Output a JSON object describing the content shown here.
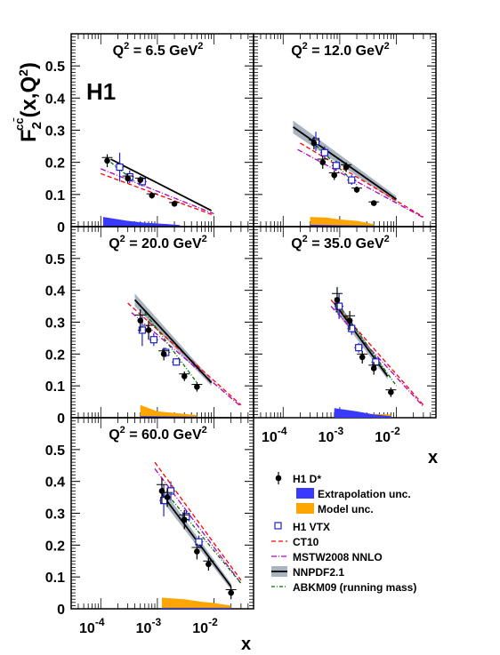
{
  "figure": {
    "ylabel": "F₂^{cc̄}(x,Q²)",
    "ylabel_main": "F",
    "ylabel_sup": "cc̄",
    "ylabel_sub": "2",
    "ylabel_args": "(x,Q",
    "ylabel_args_sup": "2",
    "ylabel_close": ")",
    "experiment": "H1",
    "xlabel": "x",
    "y_ticks": [
      "0.1",
      "0.2",
      "0.3",
      "0.4",
      "0.5"
    ],
    "y_zero": "0",
    "x_ticks": [
      {
        "base": "10",
        "exp": "-4"
      },
      {
        "base": "10",
        "exp": "-3"
      },
      {
        "base": "10",
        "exp": "-2"
      }
    ]
  },
  "legend": {
    "items": [
      {
        "key": "h1dstar",
        "label": "H1 D*"
      },
      {
        "key": "extrap",
        "label": "Extrapolation unc."
      },
      {
        "key": "model",
        "label": "Model unc."
      },
      {
        "key": "h1vtx",
        "label": "H1 VTX"
      },
      {
        "key": "ct10",
        "label": "CT10"
      },
      {
        "key": "mstw",
        "label": "MSTW2008 NNLO"
      },
      {
        "key": "nnpdf",
        "label": "NNPDF2.1"
      },
      {
        "key": "abkm",
        "label": "ABKM09 (running mass)"
      }
    ]
  },
  "colors": {
    "h1dstar": "#000000",
    "h1vtx": "#2020c8",
    "extrap": "#3a3aff",
    "model": "#ffa500",
    "ct10": "#ff0000",
    "mstw": "#b000c8",
    "nnpdf": "#000000",
    "nnpdf_band": "#aab4c0",
    "abkm": "#007000"
  },
  "chart_data": {
    "type": "scatter",
    "xscale": "log",
    "xlim": [
      3e-05,
      0.05
    ],
    "ylim": [
      0,
      0.6
    ],
    "grid": false,
    "legend_placement": "bottom-right",
    "panels": [
      {
        "label": "Q² = 6.5 GeV²",
        "title_main": "Q",
        "title_sup": "2",
        "title_rest": " = 6.5 GeV",
        "title_sup2": "2",
        "h1_dstar": [
          {
            "x": 0.00013,
            "y": 0.205,
            "err": 0.02
          },
          {
            "x": 0.0003,
            "y": 0.15,
            "err": 0.015
          },
          {
            "x": 0.0005,
            "y": 0.145,
            "err": 0.012
          },
          {
            "x": 0.0008,
            "y": 0.097,
            "err": 0.01
          },
          {
            "x": 0.002,
            "y": 0.071,
            "err": 0.008
          }
        ],
        "h1_vtx": [
          {
            "x": 0.0002,
            "y": 0.185,
            "err": 0.045
          },
          {
            "x": 0.0003,
            "y": 0.155,
            "err": 0.02
          },
          {
            "x": 0.0005,
            "y": 0.14,
            "err": 0.015
          }
        ],
        "ct10": [
          [
            0.0001,
            0.165
          ],
          [
            0.01,
            0.035
          ]
        ],
        "mstw": [
          [
            0.0001,
            0.18
          ],
          [
            0.01,
            0.04
          ]
        ],
        "nnpdf": [
          [
            0.00015,
            0.21
          ],
          [
            0.009,
            0.05
          ]
        ],
        "abkm": [
          [
            0.00015,
            0.2
          ],
          [
            0.0004,
            0.14
          ]
        ],
        "extrap_band": [
          [
            0.00011,
            0.03
          ],
          [
            0.0003,
            0.018
          ],
          [
            0.0006,
            0.012
          ],
          [
            0.0015,
            0.008
          ],
          [
            0.0025,
            0.005
          ]
        ],
        "model_band": [
          [
            0.00011,
            0.02
          ],
          [
            0.0003,
            0.015
          ],
          [
            0.0006,
            0.01
          ],
          [
            0.0015,
            0.007
          ],
          [
            0.0025,
            0.004
          ]
        ]
      },
      {
        "label": "Q² = 12.0 GeV²",
        "title_main": "Q",
        "title_sup": "2",
        "title_rest": " = 12.0 GeV",
        "title_sup2": "2",
        "h1_dstar": [
          {
            "x": 0.00035,
            "y": 0.26,
            "err": 0.02
          },
          {
            "x": 0.0005,
            "y": 0.2,
            "err": 0.02
          },
          {
            "x": 0.0008,
            "y": 0.16,
            "err": 0.015
          },
          {
            "x": 0.0013,
            "y": 0.185,
            "err": 0.015
          },
          {
            "x": 0.002,
            "y": 0.115,
            "err": 0.01
          },
          {
            "x": 0.004,
            "y": 0.073,
            "err": 0.008
          }
        ],
        "h1_vtx": [
          {
            "x": 0.00035,
            "y": 0.265,
            "err": 0.03
          },
          {
            "x": 0.0005,
            "y": 0.23,
            "err": 0.02
          },
          {
            "x": 0.0008,
            "y": 0.19,
            "err": 0.015
          },
          {
            "x": 0.0015,
            "y": 0.145,
            "err": 0.015
          }
        ],
        "ct10": [
          [
            0.0002,
            0.26
          ],
          [
            0.03,
            0.03
          ]
        ],
        "mstw": [
          [
            0.00018,
            0.24
          ],
          [
            0.03,
            0.028
          ]
        ],
        "nnpdf": [
          [
            0.00015,
            0.31
          ],
          [
            0.01,
            0.085
          ]
        ],
        "abkm": [
          [
            0.0003,
            0.27
          ],
          [
            0.002,
            0.13
          ]
        ],
        "nnpdf_band": 0.02,
        "extrap_band": [
          [
            0.0003,
            0.006
          ],
          [
            0.001,
            0.004
          ],
          [
            0.004,
            0.003
          ]
        ],
        "model_band": [
          [
            0.0003,
            0.03
          ],
          [
            0.0006,
            0.028
          ],
          [
            0.001,
            0.022
          ],
          [
            0.002,
            0.018
          ],
          [
            0.004,
            0.008
          ]
        ]
      },
      {
        "label": "Q² = 20.0 GeV²",
        "title_main": "Q",
        "title_sup": "2",
        "title_rest": " = 20.0 GeV",
        "title_sup2": "2",
        "h1_dstar": [
          {
            "x": 0.0005,
            "y": 0.305,
            "err": 0.035
          },
          {
            "x": 0.0007,
            "y": 0.275,
            "err": 0.03
          },
          {
            "x": 0.0013,
            "y": 0.2,
            "err": 0.02
          },
          {
            "x": 0.003,
            "y": 0.13,
            "err": 0.015
          },
          {
            "x": 0.005,
            "y": 0.097,
            "err": 0.015
          }
        ],
        "h1_vtx": [
          {
            "x": 0.0005,
            "y": 0.275,
            "err": 0.05
          },
          {
            "x": 0.0008,
            "y": 0.245,
            "err": 0.02
          },
          {
            "x": 0.0013,
            "y": 0.205,
            "err": 0.015
          },
          {
            "x": 0.002,
            "y": 0.175,
            "err": 0.012
          }
        ],
        "ct10": [
          [
            0.0003,
            0.36
          ],
          [
            0.03,
            0.04
          ]
        ],
        "mstw": [
          [
            0.00035,
            0.33
          ],
          [
            0.03,
            0.035
          ]
        ],
        "nnpdf": [
          [
            0.0004,
            0.37
          ],
          [
            0.009,
            0.11
          ]
        ],
        "abkm": [
          [
            0.0006,
            0.33
          ],
          [
            0.005,
            0.11
          ]
        ],
        "nnpdf_band": 0.02,
        "extrap_band": [
          [
            0.0005,
            0.005
          ],
          [
            0.002,
            0.004
          ],
          [
            0.005,
            0.003
          ]
        ],
        "model_band": [
          [
            0.0005,
            0.04
          ],
          [
            0.0007,
            0.03
          ],
          [
            0.001,
            0.02
          ],
          [
            0.002,
            0.015
          ],
          [
            0.005,
            0.008
          ]
        ]
      },
      {
        "label": "Q² = 35.0 GeV²",
        "title_main": "Q",
        "title_sup": "2",
        "title_rest": " = 35.0 GeV",
        "title_sup2": "2",
        "h1_dstar": [
          {
            "x": 0.0009,
            "y": 0.37,
            "err": 0.04
          },
          {
            "x": 0.0015,
            "y": 0.305,
            "err": 0.03
          },
          {
            "x": 0.0025,
            "y": 0.19,
            "err": 0.02
          },
          {
            "x": 0.004,
            "y": 0.155,
            "err": 0.02
          },
          {
            "x": 0.008,
            "y": 0.08,
            "err": 0.015
          }
        ],
        "h1_vtx": [
          {
            "x": 0.0009,
            "y": 0.35,
            "err": 0.04
          },
          {
            "x": 0.0015,
            "y": 0.28,
            "err": 0.02
          },
          {
            "x": 0.002,
            "y": 0.22,
            "err": 0.015
          },
          {
            "x": 0.004,
            "y": 0.175,
            "err": 0.015
          }
        ],
        "ct10": [
          [
            0.0007,
            0.37
          ],
          [
            0.03,
            0.04
          ]
        ],
        "mstw": [
          [
            0.0007,
            0.35
          ],
          [
            0.03,
            0.035
          ]
        ],
        "nnpdf": [
          [
            0.0008,
            0.36
          ],
          [
            0.007,
            0.13
          ]
        ],
        "abkm": [
          [
            0.0009,
            0.36
          ],
          [
            0.01,
            0.1
          ]
        ],
        "nnpdf_band": 0.02,
        "extrap_band": [
          [
            0.0008,
            0.03
          ],
          [
            0.002,
            0.02
          ],
          [
            0.004,
            0.01
          ],
          [
            0.008,
            0.005
          ]
        ],
        "model_band": [
          [
            0.0008,
            0.02
          ],
          [
            0.002,
            0.01
          ],
          [
            0.004,
            0.012
          ],
          [
            0.008,
            0.01
          ]
        ]
      },
      {
        "label": "Q² = 60.0 GeV²",
        "title_main": "Q",
        "title_sup": "2",
        "title_rest": " = 60.0 GeV",
        "title_sup2": "2",
        "h1_dstar": [
          {
            "x": 0.0012,
            "y": 0.37,
            "err": 0.04
          },
          {
            "x": 0.0015,
            "y": 0.35,
            "err": 0.03
          },
          {
            "x": 0.003,
            "y": 0.28,
            "err": 0.03
          },
          {
            "x": 0.005,
            "y": 0.18,
            "err": 0.025
          },
          {
            "x": 0.008,
            "y": 0.14,
            "err": 0.02
          },
          {
            "x": 0.02,
            "y": 0.05,
            "err": 0.02
          }
        ],
        "h1_vtx": [
          {
            "x": 0.0012,
            "y": 0.34,
            "err": 0.05
          },
          {
            "x": 0.0016,
            "y": 0.37,
            "err": 0.03
          },
          {
            "x": 0.003,
            "y": 0.29,
            "err": 0.02
          },
          {
            "x": 0.005,
            "y": 0.21,
            "err": 0.02
          }
        ],
        "ct10": [
          [
            0.0009,
            0.46
          ],
          [
            0.03,
            0.09
          ]
        ],
        "mstw": [
          [
            0.0009,
            0.44
          ],
          [
            0.03,
            0.08
          ]
        ],
        "nnpdf": [
          [
            0.0012,
            0.36
          ],
          [
            0.02,
            0.07
          ]
        ],
        "abkm": [
          [
            0.0012,
            0.38
          ],
          [
            0.03,
            0.08
          ]
        ],
        "nnpdf_band": 0.02,
        "extrap_band": [
          [
            0.0012,
            0.003
          ],
          [
            0.005,
            0.003
          ],
          [
            0.02,
            0.003
          ]
        ],
        "model_band": [
          [
            0.0012,
            0.035
          ],
          [
            0.003,
            0.03
          ],
          [
            0.006,
            0.022
          ],
          [
            0.01,
            0.018
          ],
          [
            0.02,
            0.01
          ]
        ]
      }
    ]
  }
}
